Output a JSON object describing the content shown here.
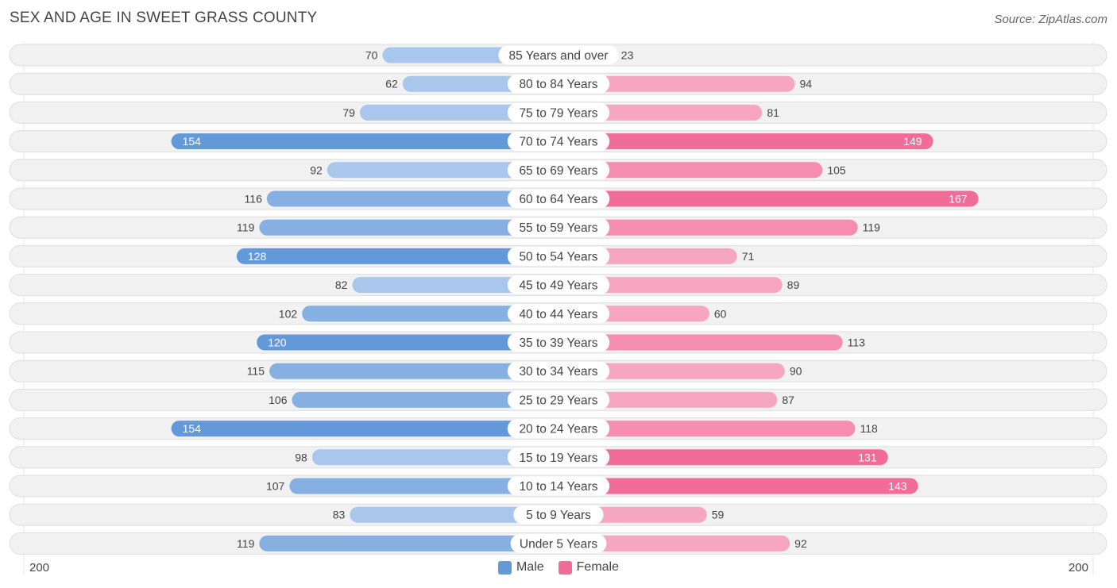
{
  "title": "SEX AND AGE IN SWEET GRASS COUNTY",
  "source": "Source: ZipAtlas.com",
  "colors": {
    "male_dark": "#6399d8",
    "male_light": "#a9c6ec",
    "female_dark": "#f26c99",
    "female_light": "#f7a6c1",
    "row_bg": "#f1f1f1",
    "row_border": "#dedede"
  },
  "legend": {
    "male_label": "Male",
    "female_label": "Female"
  },
  "axis": {
    "left_label": "200",
    "right_label": "200"
  },
  "chart_data": {
    "type": "bar",
    "orientation": "horizontal-diverging",
    "title": "SEX AND AGE IN SWEET GRASS COUNTY",
    "xlim": [
      -200,
      200
    ],
    "categories": [
      "85 Years and over",
      "80 to 84 Years",
      "75 to 79 Years",
      "70 to 74 Years",
      "65 to 69 Years",
      "60 to 64 Years",
      "55 to 59 Years",
      "50 to 54 Years",
      "45 to 49 Years",
      "40 to 44 Years",
      "35 to 39 Years",
      "30 to 34 Years",
      "25 to 29 Years",
      "20 to 24 Years",
      "15 to 19 Years",
      "10 to 14 Years",
      "5 to 9 Years",
      "Under 5 Years"
    ],
    "series": [
      {
        "name": "Male",
        "values": [
          70,
          62,
          79,
          154,
          92,
          116,
          119,
          128,
          82,
          102,
          120,
          115,
          106,
          154,
          98,
          107,
          83,
          119
        ]
      },
      {
        "name": "Female",
        "values": [
          23,
          94,
          81,
          149,
          105,
          167,
          119,
          71,
          89,
          60,
          113,
          90,
          87,
          118,
          131,
          143,
          59,
          92
        ]
      }
    ],
    "legend_position": "bottom-center"
  }
}
